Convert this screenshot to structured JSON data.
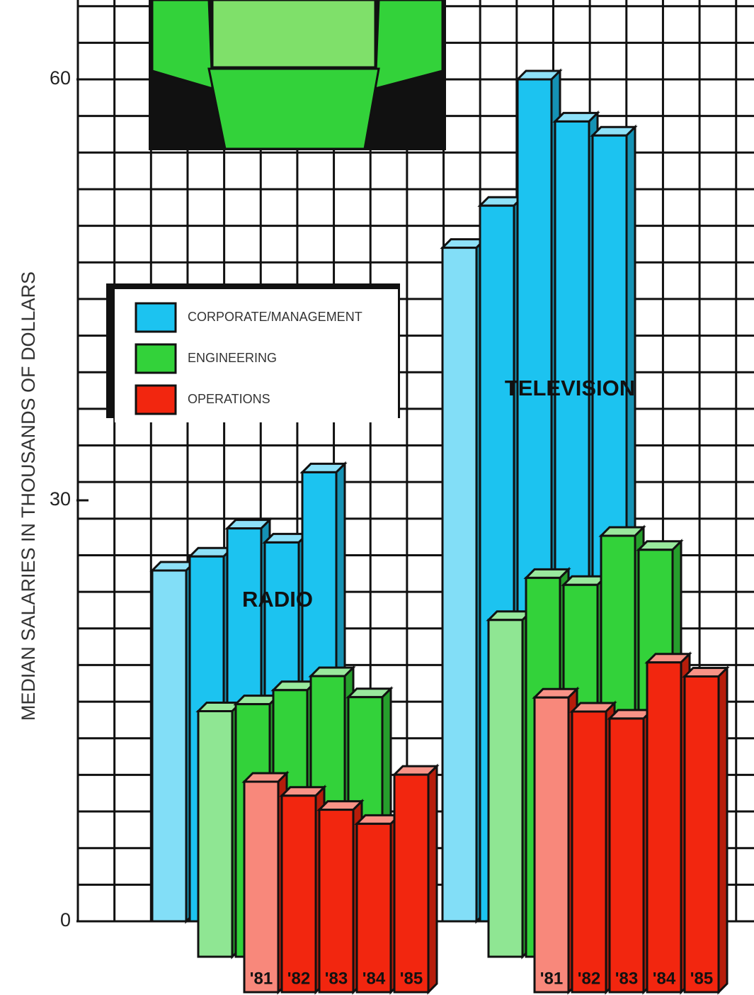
{
  "chart_data": {
    "type": "bar3d",
    "ylabel": "MEDIAN SALARIES IN THOUSANDS OF DOLLARS",
    "ylim": [
      0,
      60
    ],
    "yticks": [
      0,
      30,
      60
    ],
    "groups": [
      "RADIO",
      "TELEVISION"
    ],
    "categories": [
      "'81",
      "'82",
      "'83",
      "'84",
      "'85"
    ],
    "series": [
      {
        "name": "CORPORATE/MANAGEMENT",
        "color": "#1cc3f0",
        "values": [
          [
            25,
            26,
            28,
            27,
            32
          ],
          [
            48,
            51,
            60,
            57,
            56
          ]
        ]
      },
      {
        "name": "ENGINEERING",
        "color": "#33d23a",
        "values": [
          [
            17.5,
            18,
            19,
            20,
            18.5
          ],
          [
            24,
            27,
            26.5,
            30,
            29
          ]
        ]
      },
      {
        "name": "OPERATIONS",
        "color": "#f2260f",
        "values": [
          [
            15,
            14,
            13,
            12,
            15.5
          ],
          [
            21,
            20,
            19.5,
            23.5,
            22.5
          ]
        ]
      }
    ],
    "legend": "upper left"
  }
}
